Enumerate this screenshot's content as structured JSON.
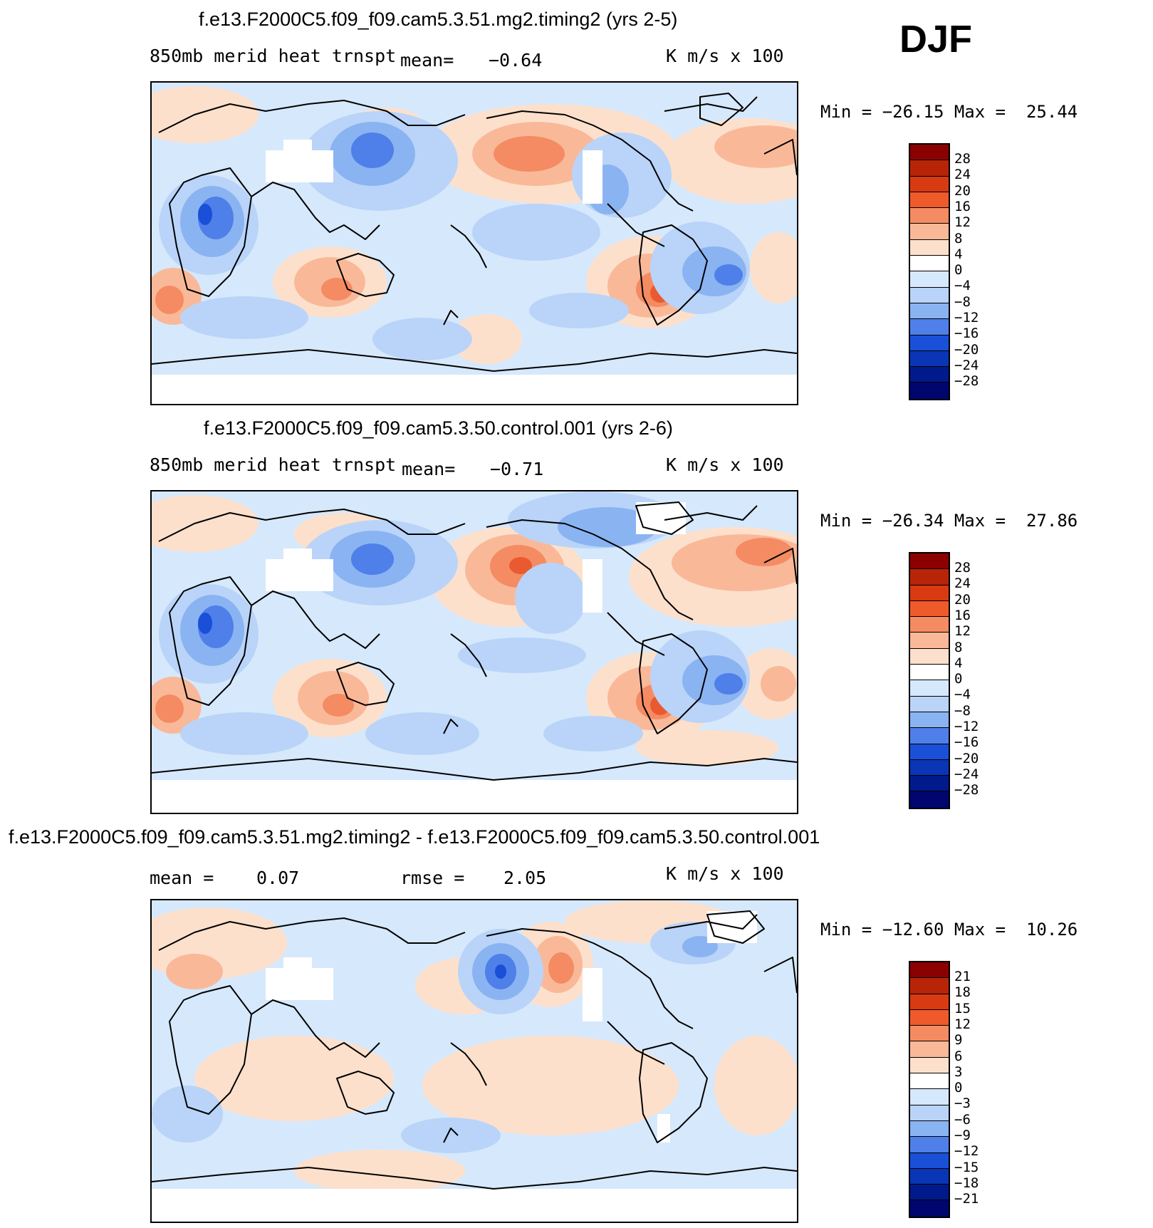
{
  "figure": {
    "season": "DJF",
    "units": "K m/s x 100"
  },
  "colors": {
    "ocean_base": "#d6e8fb",
    "warm_1": "#fde0cc",
    "warm_2": "#f9b999",
    "warm_3": "#f48b62",
    "warm_4": "#ea5a30",
    "cool_1": "#b9d4f8",
    "cool_2": "#8ab3f2",
    "cool_3": "#4f7fe8",
    "cool_4": "#1a4fd8",
    "land_outline": "#000000",
    "missing": "#ffffff"
  },
  "panels": [
    {
      "title": "f.e13.F2000C5.f09_f09.cam5.3.51.mg2.timing2 (yrs 2-5)",
      "variable": "850mb merid heat trnspt",
      "stat_label": "mean=",
      "stat_value": "−0.64",
      "units": "K m/s x 100",
      "min_max": "Min = −26.15 Max =  25.44",
      "colorbar_labels": [
        "28",
        "24",
        "20",
        "16",
        "12",
        "8",
        "4",
        "0",
        "−4",
        "−8",
        "−12",
        "−16",
        "−20",
        "−24",
        "−28"
      ]
    },
    {
      "title": "f.e13.F2000C5.f09_f09.cam5.3.50.control.001 (yrs 2-6)",
      "variable": "850mb merid heat trnspt",
      "stat_label": "mean=",
      "stat_value": "−0.71",
      "units": "K m/s x 100",
      "min_max": "Min = −26.34 Max =  27.86",
      "colorbar_labels": [
        "28",
        "24",
        "20",
        "16",
        "12",
        "8",
        "4",
        "0",
        "−4",
        "−8",
        "−12",
        "−16",
        "−20",
        "−24",
        "−28"
      ]
    },
    {
      "title": "f.e13.F2000C5.f09_f09.cam5.3.51.mg2.timing2 - f.e13.F2000C5.f09_f09.cam5.3.50.control.001",
      "mean_label": "mean =",
      "mean_value": "0.07",
      "rmse_label": "rmse =",
      "rmse_value": "2.05",
      "units": "K m/s x 100",
      "min_max": "Min = −12.60 Max =  10.26",
      "colorbar_labels": [
        "21",
        "18",
        "15",
        "12",
        "9",
        "6",
        "3",
        "0",
        "−3",
        "−6",
        "−9",
        "−12",
        "−15",
        "−18",
        "−21"
      ]
    }
  ],
  "chart_data": [
    {
      "type": "heatmap",
      "title": "f.e13.F2000C5.f09_f09.cam5.3.51.mg2.timing2 (yrs 2-5)",
      "variable": "850mb merid heat trnspt",
      "units": "K m/s x 100",
      "mean": -0.64,
      "min": -26.15,
      "max": 25.44,
      "levels": [
        -28,
        -24,
        -20,
        -16,
        -12,
        -8,
        -4,
        0,
        4,
        8,
        12,
        16,
        20,
        24,
        28
      ],
      "projection": "cylindrical equidistant, centered ~180E",
      "features": [
        {
          "region": "NE Pacific / Gulf of Alaska",
          "sign": "positive",
          "level": 3
        },
        {
          "region": "South Pacific off Chile",
          "sign": "positive",
          "level": 4
        },
        {
          "region": "Southern Indian Ocean",
          "sign": "positive",
          "level": 3
        },
        {
          "region": "South Atlantic off Africa",
          "sign": "positive",
          "level": 4
        },
        {
          "region": "East Asia / Korea",
          "sign": "negative",
          "level": 4
        },
        {
          "region": "East Africa",
          "sign": "negative",
          "level": 4
        },
        {
          "region": "South America interior",
          "sign": "negative",
          "level": 3
        }
      ]
    },
    {
      "type": "heatmap",
      "title": "f.e13.F2000C5.f09_f09.cam5.3.50.control.001 (yrs 2-6)",
      "variable": "850mb merid heat trnspt",
      "units": "K m/s x 100",
      "mean": -0.71,
      "min": -26.34,
      "max": 27.86,
      "levels": [
        -28,
        -24,
        -20,
        -16,
        -12,
        -8,
        -4,
        0,
        4,
        8,
        12,
        16,
        20,
        24,
        28
      ],
      "projection": "cylindrical equidistant, centered ~180E",
      "features": [
        {
          "region": "NE Pacific / Gulf of Alaska",
          "sign": "positive",
          "level": 4
        },
        {
          "region": "South Pacific off Chile",
          "sign": "positive",
          "level": 4
        },
        {
          "region": "Southern Indian Ocean",
          "sign": "positive",
          "level": 4
        },
        {
          "region": "North Atlantic",
          "sign": "positive",
          "level": 3
        },
        {
          "region": "East Asia / Korea",
          "sign": "negative",
          "level": 4
        },
        {
          "region": "East Africa",
          "sign": "negative",
          "level": 4
        },
        {
          "region": "Canadian Arctic",
          "sign": "negative",
          "level": 3
        }
      ]
    },
    {
      "type": "heatmap",
      "title": "f.e13.F2000C5.f09_f09.cam5.3.51.mg2.timing2 - f.e13.F2000C5.f09_f09.cam5.3.50.control.001",
      "units": "K m/s x 100",
      "mean": 0.07,
      "rmse": 2.05,
      "min": -12.6,
      "max": 10.26,
      "levels": [
        -21,
        -18,
        -15,
        -12,
        -9,
        -6,
        -3,
        0,
        3,
        6,
        9,
        12,
        15,
        18,
        21
      ],
      "projection": "cylindrical equidistant, centered ~180E",
      "features": [
        {
          "region": "North Pacific (Kamchatka)",
          "sign": "negative",
          "level": 4
        },
        {
          "region": "Gulf of Alaska",
          "sign": "positive",
          "level": 3
        },
        {
          "region": "Europe",
          "sign": "positive",
          "level": 2
        },
        {
          "region": "Canadian Arctic",
          "sign": "negative",
          "level": 2
        }
      ]
    }
  ]
}
